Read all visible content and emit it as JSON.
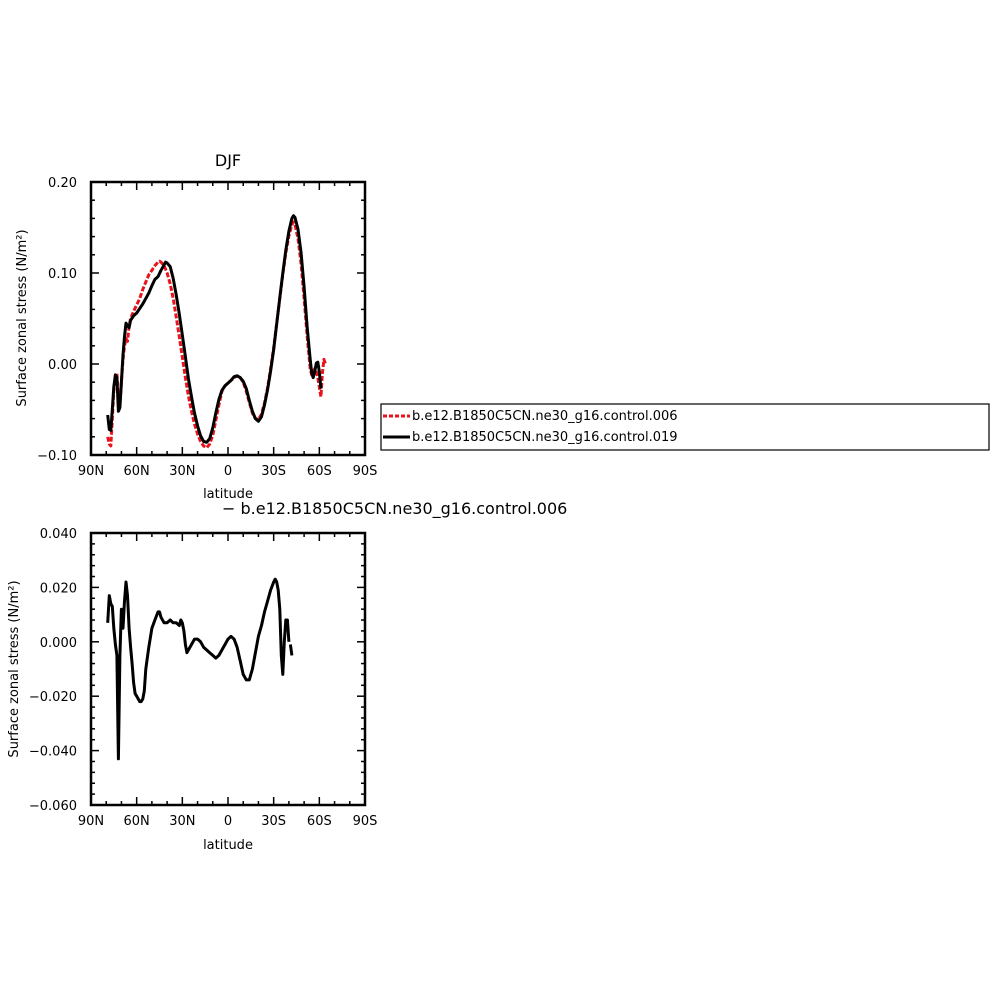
{
  "chart_data": [
    {
      "type": "line",
      "title": "DJF",
      "xlabel": "latitude",
      "ylabel": "Surface zonal stress (N/m²)",
      "x_ticks": [
        90,
        60,
        30,
        0,
        -30,
        -60,
        -90
      ],
      "x_tick_labels": [
        "90N",
        "60N",
        "30N",
        "0",
        "30S",
        "60S",
        "90S"
      ],
      "xlim": [
        90,
        -90
      ],
      "y_ticks": [
        -0.1,
        0.0,
        0.1,
        0.2
      ],
      "y_tick_labels": [
        "−0.10",
        "0.00",
        "0.10",
        "0.20"
      ],
      "ylim": [
        -0.1,
        0.2
      ],
      "legend": "right, outside the plot",
      "series": [
        {
          "name": "b.e12.B1850C5CN.ne30_g16.control.006",
          "color": "#e8131b",
          "dashed": true,
          "points": [
            [
              79,
              -0.08
            ],
            [
              78,
              -0.088
            ],
            [
              77,
              -0.09
            ],
            [
              76,
              -0.06
            ],
            [
              75,
              -0.03
            ],
            [
              74,
              -0.012
            ],
            [
              73,
              -0.01
            ],
            [
              72,
              -0.04
            ],
            [
              71,
              -0.045
            ],
            [
              70,
              -0.02
            ],
            [
              69,
              0.005
            ],
            [
              68,
              0.02
            ],
            [
              67,
              0.028
            ],
            [
              66,
              0.025
            ],
            [
              65,
              0.042
            ],
            [
              64,
              0.05
            ],
            [
              62,
              0.058
            ],
            [
              60,
              0.065
            ],
            [
              58,
              0.072
            ],
            [
              56,
              0.082
            ],
            [
              54,
              0.09
            ],
            [
              52,
              0.098
            ],
            [
              50,
              0.103
            ],
            [
              48,
              0.108
            ],
            [
              46,
              0.112
            ],
            [
              45,
              0.113
            ],
            [
              44,
              0.112
            ],
            [
              42,
              0.108
            ],
            [
              40,
              0.1
            ],
            [
              38,
              0.088
            ],
            [
              36,
              0.072
            ],
            [
              34,
              0.052
            ],
            [
              32,
              0.03
            ],
            [
              30,
              0.008
            ],
            [
              28,
              -0.015
            ],
            [
              26,
              -0.035
            ],
            [
              24,
              -0.052
            ],
            [
              22,
              -0.066
            ],
            [
              20,
              -0.077
            ],
            [
              18,
              -0.085
            ],
            [
              16,
              -0.09
            ],
            [
              14,
              -0.092
            ],
            [
              12,
              -0.088
            ],
            [
              10,
              -0.078
            ],
            [
              8,
              -0.062
            ],
            [
              6,
              -0.045
            ],
            [
              4,
              -0.03
            ],
            [
              2,
              -0.024
            ],
            [
              0,
              -0.021
            ],
            [
              -2,
              -0.018
            ],
            [
              -4,
              -0.015
            ],
            [
              -6,
              -0.013
            ],
            [
              -8,
              -0.015
            ],
            [
              -10,
              -0.02
            ],
            [
              -12,
              -0.03
            ],
            [
              -14,
              -0.042
            ],
            [
              -16,
              -0.054
            ],
            [
              -18,
              -0.06
            ],
            [
              -20,
              -0.061
            ],
            [
              -22,
              -0.055
            ],
            [
              -24,
              -0.043
            ],
            [
              -26,
              -0.026
            ],
            [
              -28,
              -0.005
            ],
            [
              -30,
              0.018
            ],
            [
              -32,
              0.045
            ],
            [
              -34,
              0.072
            ],
            [
              -36,
              0.098
            ],
            [
              -38,
              0.122
            ],
            [
              -40,
              0.141
            ],
            [
              -42,
              0.153
            ],
            [
              -43,
              0.156
            ],
            [
              -44,
              0.153
            ],
            [
              -46,
              0.138
            ],
            [
              -48,
              0.11
            ],
            [
              -50,
              0.072
            ],
            [
              -52,
              0.03
            ],
            [
              -54,
              -0.005
            ],
            [
              -55,
              -0.012
            ],
            [
              -56,
              -0.008
            ],
            [
              -57,
              -0.005
            ],
            [
              -58,
              -0.008
            ],
            [
              -59,
              -0.015
            ],
            [
              -60,
              -0.025
            ],
            [
              -61,
              -0.036
            ],
            [
              -62,
              -0.01
            ],
            [
              -63,
              0.005
            ],
            [
              -64,
              0.0
            ]
          ]
        },
        {
          "name": "b.e12.B1850C5CN.ne30_g16.control.019",
          "color": "#000000",
          "dashed": false,
          "points": [
            [
              79,
              -0.056
            ],
            [
              78,
              -0.072
            ],
            [
              77,
              -0.073
            ],
            [
              76,
              -0.05
            ],
            [
              75,
              -0.025
            ],
            [
              74,
              -0.012
            ],
            [
              73,
              -0.015
            ],
            [
              72,
              -0.052
            ],
            [
              71,
              -0.048
            ],
            [
              70,
              -0.02
            ],
            [
              69,
              0.01
            ],
            [
              68,
              0.03
            ],
            [
              67,
              0.045
            ],
            [
              66,
              0.042
            ],
            [
              65,
              0.04
            ],
            [
              64,
              0.048
            ],
            [
              62,
              0.053
            ],
            [
              60,
              0.056
            ],
            [
              58,
              0.061
            ],
            [
              56,
              0.066
            ],
            [
              54,
              0.072
            ],
            [
              52,
              0.078
            ],
            [
              50,
              0.086
            ],
            [
              48,
              0.093
            ],
            [
              46,
              0.096
            ],
            [
              44,
              0.103
            ],
            [
              42,
              0.109
            ],
            [
              41,
              0.112
            ],
            [
              40,
              0.111
            ],
            [
              38,
              0.107
            ],
            [
              36,
              0.094
            ],
            [
              34,
              0.076
            ],
            [
              32,
              0.055
            ],
            [
              30,
              0.032
            ],
            [
              28,
              0.008
            ],
            [
              26,
              -0.016
            ],
            [
              24,
              -0.036
            ],
            [
              22,
              -0.054
            ],
            [
              20,
              -0.068
            ],
            [
              18,
              -0.079
            ],
            [
              16,
              -0.085
            ],
            [
              14,
              -0.086
            ],
            [
              12,
              -0.082
            ],
            [
              10,
              -0.07
            ],
            [
              8,
              -0.054
            ],
            [
              6,
              -0.039
            ],
            [
              4,
              -0.029
            ],
            [
              2,
              -0.024
            ],
            [
              0,
              -0.021
            ],
            [
              -2,
              -0.018
            ],
            [
              -4,
              -0.014
            ],
            [
              -6,
              -0.013
            ],
            [
              -8,
              -0.015
            ],
            [
              -10,
              -0.019
            ],
            [
              -12,
              -0.027
            ],
            [
              -14,
              -0.04
            ],
            [
              -16,
              -0.052
            ],
            [
              -18,
              -0.06
            ],
            [
              -20,
              -0.063
            ],
            [
              -22,
              -0.058
            ],
            [
              -24,
              -0.045
            ],
            [
              -26,
              -0.028
            ],
            [
              -28,
              -0.008
            ],
            [
              -30,
              0.016
            ],
            [
              -32,
              0.044
            ],
            [
              -34,
              0.073
            ],
            [
              -36,
              0.1
            ],
            [
              -38,
              0.125
            ],
            [
              -40,
              0.146
            ],
            [
              -42,
              0.16
            ],
            [
              -43,
              0.163
            ],
            [
              -44,
              0.161
            ],
            [
              -46,
              0.148
            ],
            [
              -48,
              0.122
            ],
            [
              -50,
              0.085
            ],
            [
              -52,
              0.04
            ],
            [
              -54,
              0.005
            ],
            [
              -55,
              -0.01
            ],
            [
              -56,
              -0.015
            ],
            [
              -57,
              -0.008
            ],
            [
              -58,
              0.001
            ],
            [
              -59,
              0.002
            ],
            [
              -60,
              -0.008
            ],
            [
              -61,
              -0.027
            ]
          ]
        }
      ]
    },
    {
      "type": "line",
      "title": "− b.e12.B1850C5CN.ne30_g16.control.006",
      "xlabel": "latitude",
      "ylabel": "Surface zonal stress (N/m²)",
      "x_ticks": [
        90,
        60,
        30,
        0,
        -30,
        -60,
        -90
      ],
      "x_tick_labels": [
        "90N",
        "60N",
        "30N",
        "0",
        "30S",
        "60S",
        "90S"
      ],
      "xlim": [
        90,
        -90
      ],
      "y_ticks": [
        -0.06,
        -0.04,
        -0.02,
        0.0,
        0.02,
        0.04
      ],
      "y_tick_labels": [
        "−0.060",
        "−0.040",
        "−0.020",
        "0.000",
        "0.020",
        "0.040"
      ],
      "ylim": [
        -0.06,
        0.04
      ],
      "series": [
        {
          "color": "#000000",
          "dashed": false,
          "points": [
            [
              79,
              0.007
            ],
            [
              78,
              0.017
            ],
            [
              77,
              0.014
            ],
            [
              76,
              0.013
            ],
            [
              75,
              0.005
            ],
            [
              74,
              -0.001
            ],
            [
              73,
              -0.005
            ],
            [
              72,
              -0.043
            ],
            [
              71,
              -0.005
            ],
            [
              70,
              0.012
            ],
            [
              69,
              0.005
            ],
            [
              68,
              0.015
            ],
            [
              67,
              0.022
            ],
            [
              66,
              0.017
            ],
            [
              65,
              0.005
            ],
            [
              64,
              -0.002
            ],
            [
              63,
              -0.008
            ],
            [
              62,
              -0.015
            ],
            [
              61,
              -0.019
            ],
            [
              60,
              -0.02
            ],
            [
              59,
              -0.021
            ],
            [
              58,
              -0.022
            ],
            [
              57,
              -0.022
            ],
            [
              56,
              -0.021
            ],
            [
              55,
              -0.018
            ],
            [
              54,
              -0.01
            ],
            [
              52,
              -0.002
            ],
            [
              50,
              0.005
            ],
            [
              48,
              0.008
            ],
            [
              46,
              0.011
            ],
            [
              45,
              0.011
            ],
            [
              44,
              0.009
            ],
            [
              42,
              0.007
            ],
            [
              40,
              0.007
            ],
            [
              38,
              0.008
            ],
            [
              36,
              0.007
            ],
            [
              34,
              0.007
            ],
            [
              32,
              0.006
            ],
            [
              31,
              0.008
            ],
            [
              30,
              0.007
            ],
            [
              29,
              0.004
            ],
            [
              28,
              -0.001
            ],
            [
              27,
              -0.004
            ],
            [
              26,
              -0.003
            ],
            [
              24,
              -0.001
            ],
            [
              22,
              0.001
            ],
            [
              20,
              0.001
            ],
            [
              18,
              0.0
            ],
            [
              16,
              -0.002
            ],
            [
              14,
              -0.003
            ],
            [
              12,
              -0.004
            ],
            [
              10,
              -0.005
            ],
            [
              8,
              -0.006
            ],
            [
              6,
              -0.005
            ],
            [
              4,
              -0.003
            ],
            [
              2,
              -0.001
            ],
            [
              0,
              0.001
            ],
            [
              -2,
              0.002
            ],
            [
              -4,
              0.001
            ],
            [
              -6,
              -0.002
            ],
            [
              -8,
              -0.007
            ],
            [
              -10,
              -0.012
            ],
            [
              -12,
              -0.014
            ],
            [
              -14,
              -0.014
            ],
            [
              -16,
              -0.01
            ],
            [
              -18,
              -0.004
            ],
            [
              -20,
              0.002
            ],
            [
              -22,
              0.006
            ],
            [
              -24,
              0.011
            ],
            [
              -26,
              0.015
            ],
            [
              -28,
              0.019
            ],
            [
              -30,
              0.022
            ],
            [
              -31,
              0.023
            ],
            [
              -32,
              0.022
            ],
            [
              -33,
              0.019
            ],
            [
              -34,
              0.012
            ],
            [
              -35,
              -0.005
            ],
            [
              -36,
              -0.012
            ],
            [
              -37,
              0.0
            ],
            [
              -38,
              0.008
            ],
            [
              -39,
              0.008
            ],
            [
              -40,
              0.0
            ]
          ],
          "trailing_segment": [
            [
              -41,
              -0.001
            ],
            [
              -42,
              -0.005
            ]
          ]
        }
      ]
    }
  ]
}
